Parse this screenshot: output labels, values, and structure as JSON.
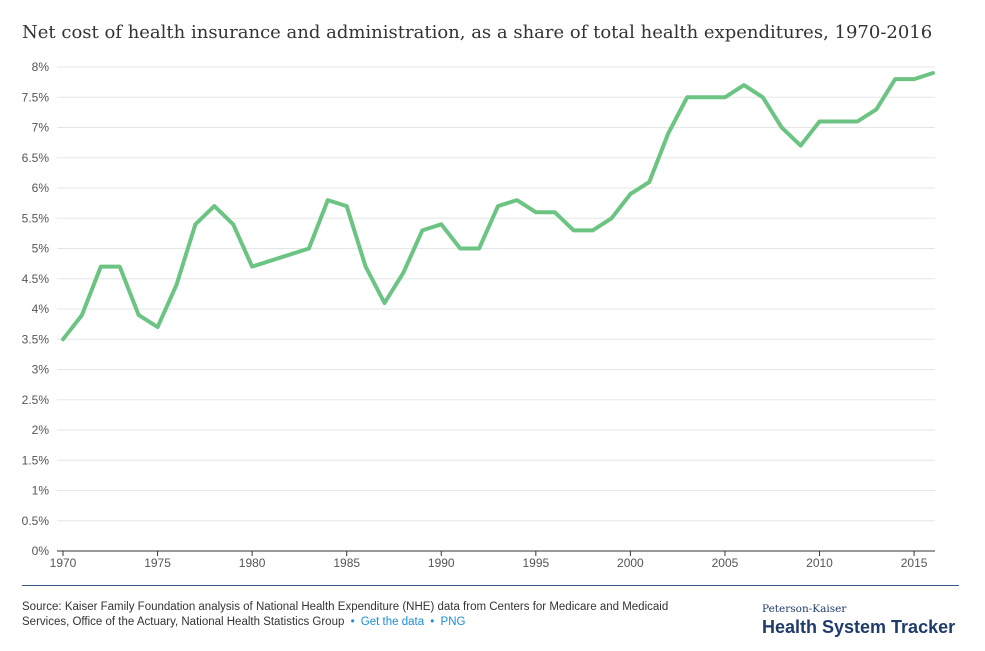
{
  "title": "Net cost of health insurance and administration, as a share of total health expenditures, 1970-2016",
  "footer": {
    "source": "Source: Kaiser Family Foundation analysis of National Health Expenditure (NHE) data from Centers for Medicare and Medicaid Services, Office of the Actuary, National Health Statistics Group",
    "sep": "•",
    "get_data": "Get the data",
    "png": "PNG",
    "brand_small": "Peterson-Kaiser",
    "brand_large": "Health System Tracker"
  },
  "colors": {
    "line": "#6cc483",
    "grid": "#e5e5e5",
    "axis": "#333333",
    "brand": "#1f3b6b",
    "link": "#1a8fd6"
  },
  "chart_data": {
    "type": "line",
    "title": "Net cost of health insurance and administration, as a share of total health expenditures, 1970-2016",
    "xlabel": "",
    "ylabel": "",
    "xlim": [
      1970,
      2016
    ],
    "ylim": [
      0,
      8
    ],
    "grid": true,
    "x_ticks": [
      1970,
      1975,
      1980,
      1985,
      1990,
      1995,
      2000,
      2005,
      2010,
      2015
    ],
    "y_ticks": [
      0,
      0.5,
      1,
      1.5,
      2,
      2.5,
      3,
      3.5,
      4,
      4.5,
      5,
      5.5,
      6,
      6.5,
      7,
      7.5,
      8
    ],
    "y_tick_labels": [
      "0%",
      "0.5%",
      "1%",
      "1.5%",
      "2%",
      "2.5%",
      "3%",
      "3.5%",
      "4%",
      "4.5%",
      "5%",
      "5.5%",
      "6%",
      "6.5%",
      "7%",
      "7.5%",
      "8%"
    ],
    "x_tick_labels": [
      "1970",
      "1975",
      "1980",
      "1985",
      "1990",
      "1995",
      "2000",
      "2005",
      "2010",
      "2015"
    ],
    "series": [
      {
        "x": [
          1970,
          1971,
          1972,
          1973,
          1974,
          1975,
          1976,
          1977,
          1978,
          1979,
          1980,
          1983,
          1984,
          1985,
          1986,
          1987,
          1988,
          1989,
          1990,
          1991,
          1992,
          1993,
          1994,
          1995,
          1996,
          1997,
          1998,
          1999,
          2000,
          2001,
          2002,
          2003,
          2004,
          2005,
          2006,
          2007,
          2008,
          2009,
          2010,
          2011,
          2012,
          2013,
          2014,
          2015,
          2016
        ],
        "values": [
          3.5,
          3.9,
          4.7,
          4.7,
          3.9,
          3.7,
          4.4,
          5.4,
          5.7,
          5.4,
          4.7,
          5.0,
          5.8,
          5.7,
          4.7,
          4.1,
          4.6,
          5.3,
          5.4,
          5.0,
          5.0,
          5.7,
          5.8,
          5.6,
          5.6,
          5.3,
          5.3,
          5.5,
          5.9,
          6.1,
          6.9,
          7.5,
          7.5,
          7.5,
          7.7,
          7.5,
          7.0,
          6.7,
          7.1,
          7.1,
          7.1,
          7.3,
          7.8,
          7.8,
          7.9
        ]
      }
    ]
  }
}
